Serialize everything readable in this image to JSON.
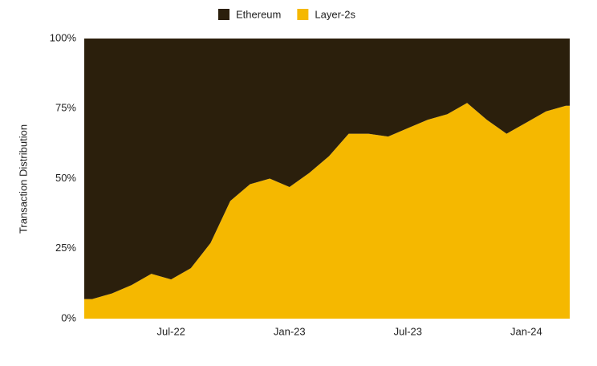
{
  "chart_data": {
    "type": "stacked-area",
    "y_label": "Transaction Distribution",
    "x": [
      "Mar-22",
      "Apr-22",
      "May-22",
      "Jun-22",
      "Jul-22",
      "Aug-22",
      "Sep-22",
      "Oct-22",
      "Nov-22",
      "Dec-22",
      "Jan-23",
      "Feb-23",
      "Mar-23",
      "Apr-23",
      "May-23",
      "Jun-23",
      "Jul-23",
      "Aug-23",
      "Sep-23",
      "Oct-23",
      "Nov-23",
      "Dec-23",
      "Jan-24",
      "Feb-24",
      "Mar-24"
    ],
    "xticks": [
      "Jul-22",
      "Jan-23",
      "Jul-23",
      "Jan-24"
    ],
    "series": [
      {
        "name": "Layer-2s",
        "color": "#f5b800",
        "values": [
          7,
          9,
          12,
          16,
          14,
          18,
          27,
          42,
          48,
          50,
          47,
          52,
          58,
          66,
          66,
          65,
          68,
          71,
          73,
          77,
          71,
          66,
          70,
          74,
          76
        ]
      },
      {
        "name": "Ethereum",
        "color": "#2b1f0c",
        "values": [
          93,
          91,
          88,
          84,
          86,
          82,
          73,
          58,
          52,
          50,
          53,
          48,
          42,
          34,
          34,
          35,
          32,
          29,
          27,
          23,
          29,
          34,
          30,
          26,
          24
        ]
      }
    ],
    "ylim": [
      0,
      100
    ],
    "yticks": [
      {
        "value": 0,
        "label": "0%"
      },
      {
        "value": 25,
        "label": "25%"
      },
      {
        "value": 50,
        "label": "50%"
      },
      {
        "value": 75,
        "label": "75%"
      },
      {
        "value": 100,
        "label": "100%"
      }
    ],
    "legend": "top"
  }
}
